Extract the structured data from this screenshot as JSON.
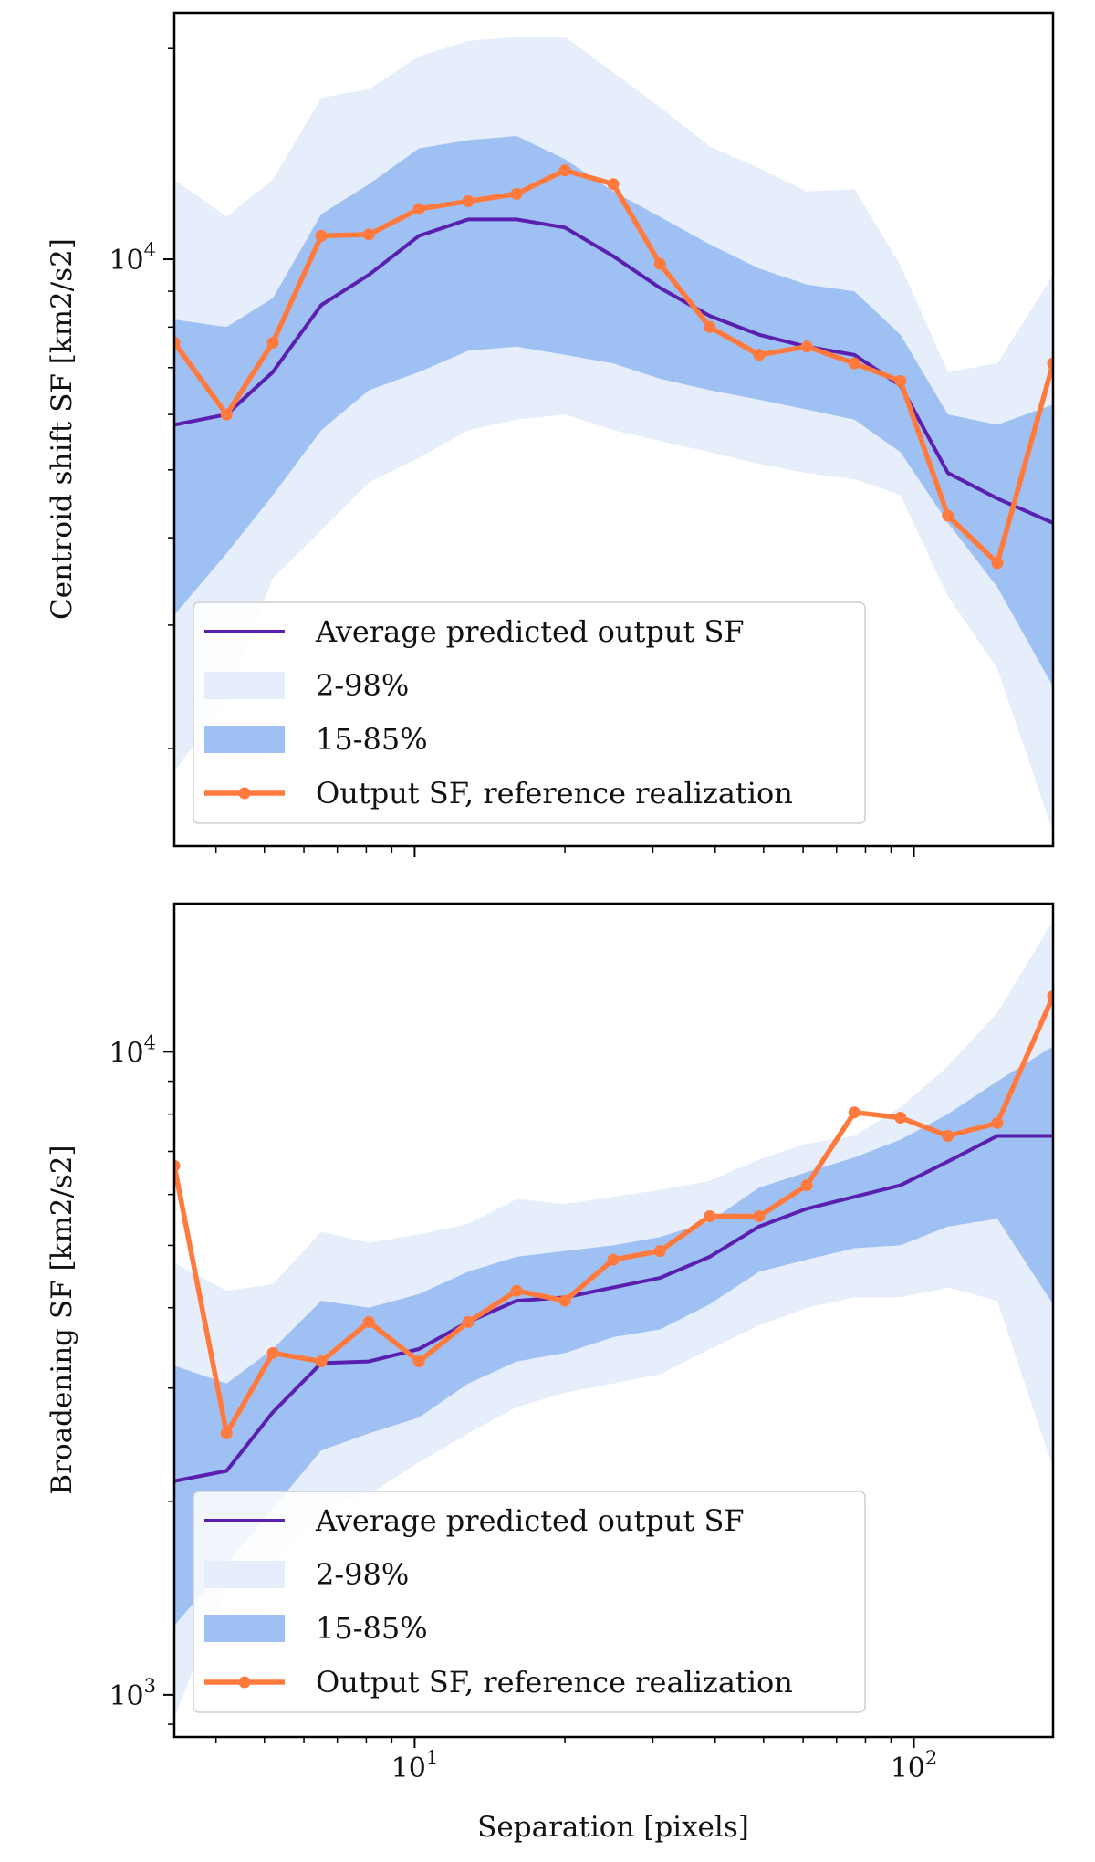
{
  "colors": {
    "mean": "#5b1fb0",
    "band_outer": "#e6eefb",
    "band_inner": "#9fc0f2",
    "reference": "#ff7a3c",
    "axis": "#000000"
  },
  "chart_data": [
    {
      "type": "line",
      "ylabel": "Centroid shift SF [km2/s2]",
      "xlabel": "",
      "xscale": "log",
      "yscale": "log",
      "xlim": [
        3.3,
        190
      ],
      "ylim": [
        1450,
        22500
      ],
      "grid": false,
      "legend_position": "lower-left",
      "x_ticks": [
        {
          "value": 10,
          "base": "10",
          "exp": "1",
          "label": ""
        },
        {
          "value": 100,
          "base": "10",
          "exp": "2",
          "label": ""
        }
      ],
      "y_ticks": [
        {
          "value": 10000,
          "base": "10",
          "exp": "4"
        }
      ],
      "x": [
        3.3,
        4.2,
        5.2,
        6.5,
        8.1,
        10.2,
        12.8,
        16,
        20,
        25,
        31,
        39,
        49,
        61,
        76,
        94,
        117,
        147,
        190
      ],
      "series": [
        {
          "name": "2-98%",
          "kind": "band",
          "lower": [
            1850,
            2350,
            3500,
            4100,
            4800,
            5200,
            5700,
            5900,
            6000,
            5700,
            5500,
            5300,
            5100,
            4950,
            4850,
            4600,
            3300,
            2600,
            1520
          ],
          "upper": [
            13000,
            11500,
            13000,
            17000,
            17500,
            19500,
            20500,
            20800,
            20800,
            18500,
            16500,
            14500,
            13500,
            12500,
            12600,
            9800,
            6900,
            7100,
            9500
          ]
        },
        {
          "name": "15-85%",
          "kind": "band",
          "lower": [
            3100,
            3800,
            4600,
            5700,
            6500,
            6900,
            7400,
            7500,
            7300,
            7100,
            6750,
            6500,
            6300,
            6100,
            5900,
            5300,
            4200,
            3400,
            2450
          ],
          "upper": [
            8200,
            8000,
            8800,
            11600,
            12800,
            14400,
            14800,
            15000,
            13900,
            12500,
            11500,
            10500,
            9700,
            9200,
            9000,
            7800,
            6000,
            5800,
            6200
          ]
        },
        {
          "name": "Average predicted output SF",
          "kind": "line",
          "values": [
            5800,
            6000,
            6900,
            8600,
            9500,
            10800,
            11400,
            11400,
            11100,
            10100,
            9100,
            8300,
            7800,
            7500,
            7300,
            6600,
            4950,
            4550,
            4200
          ]
        },
        {
          "name": "Output SF, reference realization",
          "kind": "line-markers",
          "values": [
            7600,
            6000,
            7600,
            10800,
            10850,
            11800,
            12100,
            12400,
            13400,
            12800,
            9850,
            8000,
            7300,
            7500,
            7100,
            6700,
            4300,
            3680,
            7100
          ]
        }
      ],
      "legend": [
        {
          "label": "Average predicted output SF",
          "kind": "line"
        },
        {
          "label": "2-98%",
          "kind": "band_outer"
        },
        {
          "label": "15-85%",
          "kind": "band_inner"
        },
        {
          "label": "Output SF, reference realization",
          "kind": "line-markers"
        }
      ]
    },
    {
      "type": "line",
      "ylabel": "Broadening SF [km2/s2]",
      "xlabel": "Separation [pixels]",
      "xscale": "log",
      "yscale": "log",
      "xlim": [
        3.3,
        190
      ],
      "ylim": [
        860,
        17000
      ],
      "grid": false,
      "legend_position": "lower-left",
      "x_ticks": [
        {
          "value": 10,
          "base": "10",
          "exp": "1",
          "label": ""
        },
        {
          "value": 100,
          "base": "10",
          "exp": "2",
          "label": ""
        }
      ],
      "y_ticks": [
        {
          "value": 1000,
          "base": "10",
          "exp": "3"
        },
        {
          "value": 10000,
          "base": "10",
          "exp": "4"
        }
      ],
      "x": [
        3.3,
        4.2,
        5.2,
        6.5,
        8.1,
        10.2,
        12.8,
        16,
        20,
        25,
        31,
        39,
        49,
        61,
        76,
        94,
        117,
        147,
        190
      ],
      "series": [
        {
          "name": "2-98%",
          "kind": "band",
          "lower": [
            920,
            1480,
            1600,
            1950,
            2050,
            2300,
            2550,
            2800,
            2950,
            3050,
            3150,
            3450,
            3750,
            4000,
            4150,
            4150,
            4300,
            4100,
            2250
          ],
          "upper": [
            4700,
            4250,
            4350,
            5250,
            5050,
            5200,
            5400,
            5900,
            5800,
            5950,
            6100,
            6300,
            6800,
            7200,
            7400,
            8200,
            9500,
            11500,
            16000
          ]
        },
        {
          "name": "15-85%",
          "kind": "band",
          "lower": [
            1280,
            1600,
            1950,
            2400,
            2550,
            2700,
            3050,
            3300,
            3400,
            3600,
            3700,
            4050,
            4550,
            4750,
            4950,
            5000,
            5350,
            5500,
            4050
          ],
          "upper": [
            3250,
            3050,
            3450,
            4100,
            4000,
            4200,
            4550,
            4800,
            4900,
            5000,
            5150,
            5450,
            6150,
            6500,
            6850,
            7300,
            8000,
            9000,
            10200
          ]
        },
        {
          "name": "Average predicted output SF",
          "kind": "line",
          "values": [
            2150,
            2230,
            2750,
            3280,
            3300,
            3450,
            3800,
            4100,
            4150,
            4300,
            4450,
            4800,
            5350,
            5700,
            5950,
            6200,
            6750,
            7400,
            7400
          ]
        },
        {
          "name": "Output SF, reference realization",
          "kind": "line-markers",
          "values": [
            6650,
            2550,
            3400,
            3300,
            3800,
            3300,
            3800,
            4250,
            4100,
            4750,
            4900,
            5550,
            5550,
            6200,
            8050,
            7900,
            7400,
            7750,
            12200
          ]
        }
      ],
      "legend": [
        {
          "label": "Average predicted output SF",
          "kind": "line"
        },
        {
          "label": "2-98%",
          "kind": "band_outer"
        },
        {
          "label": "15-85%",
          "kind": "band_inner"
        },
        {
          "label": "Output SF, reference realization",
          "kind": "line-markers"
        }
      ]
    }
  ]
}
